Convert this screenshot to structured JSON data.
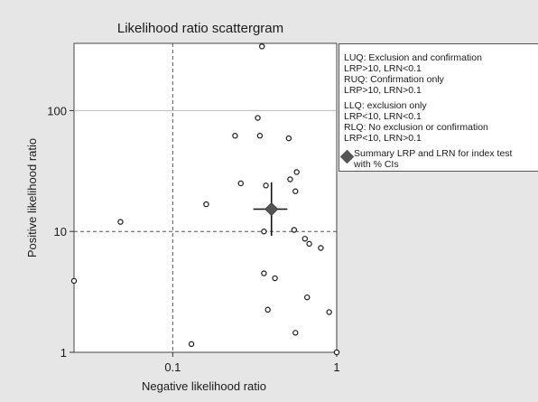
{
  "chart_data": {
    "type": "scatter",
    "title": "Likelihood ratio scattergram",
    "xlabel": "Negative likelihood ratio",
    "ylabel": "Positive  likelihood ratio",
    "xscale": "log",
    "yscale": "log",
    "xlim": [
      0.025,
      1.0
    ],
    "ylim": [
      1,
      360
    ],
    "xticks": [
      {
        "value": 0.1,
        "label": "0.1"
      },
      {
        "value": 1,
        "label": "1"
      }
    ],
    "yticks": [
      {
        "value": 1,
        "label": "1"
      },
      {
        "value": 10,
        "label": "10"
      },
      {
        "value": 100,
        "label": "100"
      }
    ],
    "reference_lines": {
      "x": 0.1,
      "y": 10,
      "style": "dashed"
    },
    "grid": "horizontal at 100",
    "legend_placement": "right",
    "series": [
      {
        "marker": "open-circle",
        "points": [
          {
            "x": 0.025,
            "y": 3.9
          },
          {
            "x": 0.048,
            "y": 12
          },
          {
            "x": 0.13,
            "y": 1.17
          },
          {
            "x": 0.16,
            "y": 16.8
          },
          {
            "x": 0.24,
            "y": 62
          },
          {
            "x": 0.26,
            "y": 25
          },
          {
            "x": 0.33,
            "y": 87
          },
          {
            "x": 0.34,
            "y": 62
          },
          {
            "x": 0.35,
            "y": 340
          },
          {
            "x": 0.36,
            "y": 4.5
          },
          {
            "x": 0.36,
            "y": 10
          },
          {
            "x": 0.37,
            "y": 24
          },
          {
            "x": 0.38,
            "y": 2.25
          },
          {
            "x": 0.42,
            "y": 4.1
          },
          {
            "x": 0.51,
            "y": 59
          },
          {
            "x": 0.52,
            "y": 27
          },
          {
            "x": 0.55,
            "y": 10.3
          },
          {
            "x": 0.56,
            "y": 21.5
          },
          {
            "x": 0.57,
            "y": 31
          },
          {
            "x": 0.56,
            "y": 1.45
          },
          {
            "x": 0.64,
            "y": 8.7
          },
          {
            "x": 0.66,
            "y": 2.85
          },
          {
            "x": 0.68,
            "y": 7.9
          },
          {
            "x": 0.8,
            "y": 7.3
          },
          {
            "x": 0.9,
            "y": 2.15
          },
          {
            "x": 1.0,
            "y": 1.0
          }
        ]
      },
      {
        "marker": "diamond",
        "summary": true,
        "point": {
          "x": 0.4,
          "y": 15.3
        },
        "x_ci": [
          0.31,
          0.5
        ],
        "y_ci": [
          9.2,
          25.5
        ]
      }
    ],
    "legend": {
      "groups": [
        [
          "LUQ: Exclusion and confirmation",
          "LRP>10, LRN<0.1",
          "RUQ: Confirmation only",
          "LRP>10, LRN>0.1"
        ],
        [
          "LLQ: exclusion only",
          "LRP<10, LRN<0.1",
          "RLQ: No exclusion or confirmation",
          "LRP<10, LRN>0.1"
        ]
      ],
      "summary_label": [
        "Summary LRP and LRN for index test",
        "with % CIs"
      ]
    },
    "colors": {
      "background": "#e6e6e6",
      "plot_area": "#ffffff",
      "marker": "#1a1a1a",
      "summary_marker": "#555555"
    }
  }
}
